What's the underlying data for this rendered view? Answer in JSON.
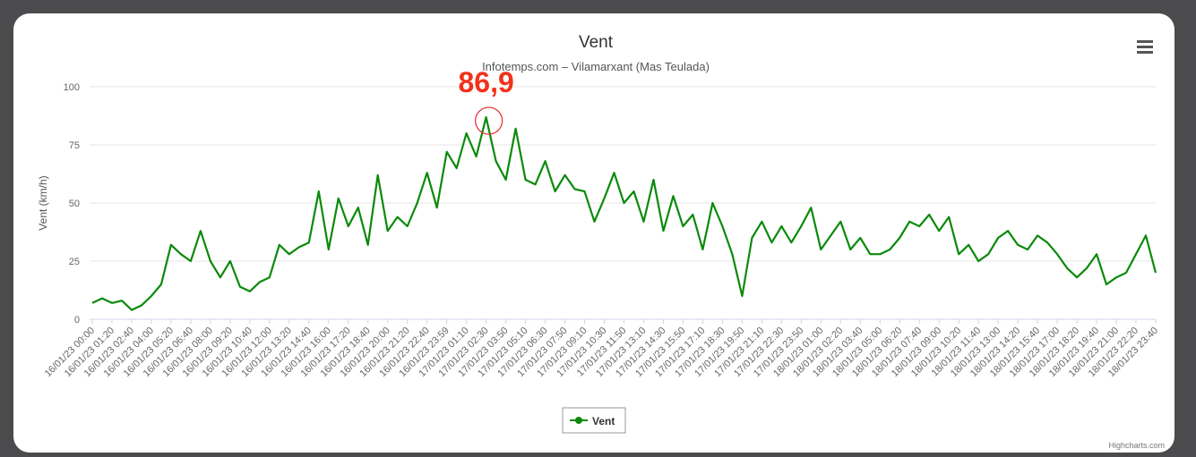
{
  "chart_data": {
    "type": "line",
    "title": "Vent",
    "subtitle": "Infotemps.com – Vilamarxant (Mas Teulada)",
    "y_label": "Vent (km/h)",
    "annotation": "86,9",
    "credits": "Highcharts.com",
    "grid": true,
    "legend": "bottom",
    "ylim": [
      0,
      100
    ],
    "yticks": [
      0,
      25,
      50,
      75,
      100
    ],
    "categories": [
      "16/01/23 00:00",
      null,
      "16/01/23 01:20",
      null,
      "16/01/23 02:40",
      null,
      "16/01/23 04:00",
      null,
      "16/01/23 05:20",
      null,
      "16/01/23 06:40",
      null,
      "16/01/23 08:00",
      null,
      "16/01/23 09:20",
      null,
      "16/01/23 10:40",
      null,
      "16/01/23 12:00",
      null,
      "16/01/23 13:20",
      null,
      "16/01/23 14:40",
      null,
      "16/01/23 16:00",
      null,
      "16/01/23 17:20",
      null,
      "16/01/23 18:40",
      null,
      "16/01/23 20:00",
      null,
      "16/01/23 21:20",
      null,
      "16/01/23 22:40",
      null,
      "16/01/23 23:59",
      null,
      "17/01/23 01:10",
      null,
      "17/01/23 02:30",
      null,
      "17/01/23 03:50",
      null,
      "17/01/23 05:10",
      null,
      "17/01/23 06:30",
      null,
      "17/01/23 07:50",
      null,
      "17/01/23 09:10",
      null,
      "17/01/23 10:30",
      null,
      "17/01/23 11:50",
      null,
      "17/01/23 13:10",
      null,
      "17/01/23 14:30",
      null,
      "17/01/23 15:50",
      null,
      "17/01/23 17:10",
      null,
      "17/01/23 18:30",
      null,
      "17/01/23 19:50",
      null,
      "17/01/23 21:10",
      null,
      "17/01/23 22:30",
      null,
      "17/01/23 23:50",
      null,
      "18/01/23 01:00",
      null,
      "18/01/23 02:20",
      null,
      "18/01/23 03:40",
      null,
      "18/01/23 05:00",
      null,
      "18/01/23 06:20",
      null,
      "18/01/23 07:40",
      null,
      "18/01/23 09:00",
      null,
      "18/01/23 10:20",
      null,
      "18/01/23 11:40",
      null,
      "18/01/23 13:00",
      null,
      "18/01/23 14:20",
      null,
      "18/01/23 15:40",
      null,
      "18/01/23 17:00",
      null,
      "18/01/23 18:20",
      null,
      "18/01/23 19:40",
      null,
      "18/01/23 21:00",
      null,
      "18/01/23 22:20",
      null,
      "18/01/23 23:40"
    ],
    "series": [
      {
        "name": "Vent",
        "color": "#0a8a0a",
        "values": [
          7,
          9,
          7,
          8,
          4,
          6,
          10,
          15,
          32,
          28,
          25,
          38,
          25,
          18,
          25,
          14,
          12,
          16,
          18,
          32,
          28,
          31,
          33,
          55,
          30,
          52,
          40,
          48,
          32,
          62,
          38,
          44,
          40,
          50,
          63,
          48,
          72,
          65,
          80,
          70,
          86.9,
          68,
          60,
          82,
          60,
          58,
          68,
          55,
          62,
          56,
          55,
          42,
          52,
          63,
          50,
          55,
          42,
          60,
          38,
          53,
          40,
          45,
          30,
          50,
          40,
          28,
          10,
          35,
          42,
          33,
          40,
          33,
          40,
          48,
          30,
          36,
          42,
          30,
          35,
          28,
          28,
          30,
          35,
          42,
          40,
          45,
          38,
          44,
          28,
          32,
          25,
          28,
          35,
          38,
          32,
          30,
          36,
          33,
          28,
          22,
          18,
          22,
          28,
          15,
          18,
          20,
          28,
          36,
          20
        ]
      }
    ]
  }
}
